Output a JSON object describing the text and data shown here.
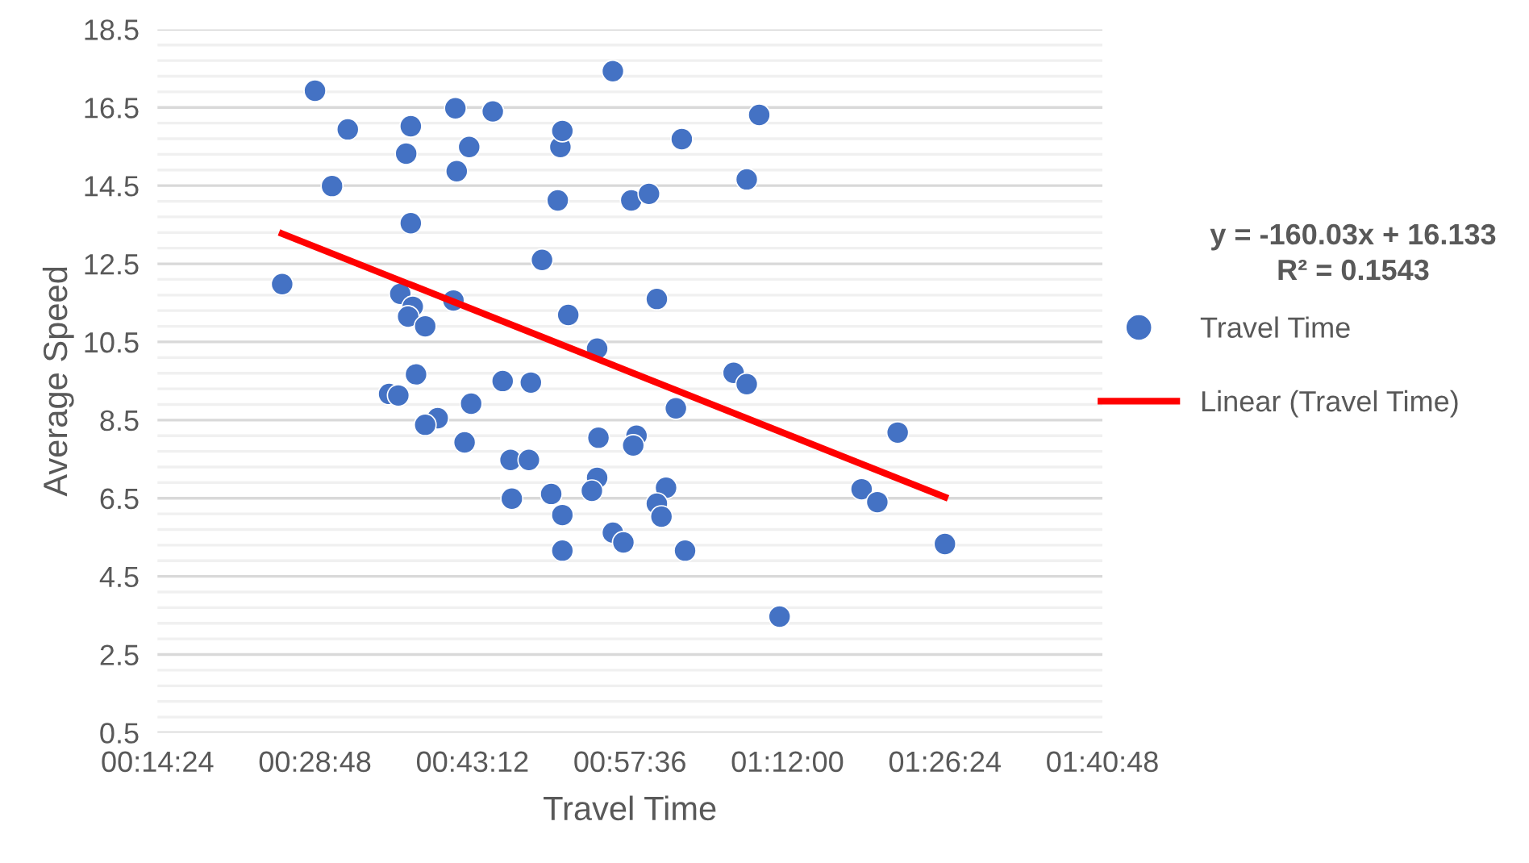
{
  "chart_data": {
    "type": "scatter",
    "xlabel": "Travel Time",
    "ylabel": "Average Speed",
    "xlim": [
      0.24,
      1.68
    ],
    "xticks": [
      {
        "value": 0.24,
        "label": "00:14:24"
      },
      {
        "value": 0.48,
        "label": "00:28:48"
      },
      {
        "value": 0.72,
        "label": "00:43:12"
      },
      {
        "value": 0.96,
        "label": "00:57:36"
      },
      {
        "value": 1.2,
        "label": "01:12:00"
      },
      {
        "value": 1.44,
        "label": "01:26:24"
      },
      {
        "value": 1.68,
        "label": "01:40:48"
      }
    ],
    "ylim": [
      0.5,
      18.5
    ],
    "yticks": [
      0.5,
      2.5,
      4.5,
      6.5,
      8.5,
      10.5,
      12.5,
      14.5,
      16.5,
      18.5
    ],
    "grid": "y",
    "legend": "right",
    "annotations": [
      "y = -160.03x + 16.133\nR² = 0.1543"
    ],
    "series": [
      {
        "name": "Travel Time",
        "color": "#4472c4",
        "marker": "circle",
        "x": [
          0.43,
          0.48,
          0.506,
          0.53,
          0.626,
          0.626,
          0.619,
          0.694,
          0.696,
          0.715,
          0.751,
          0.854,
          0.857,
          0.934,
          0.85,
          0.962,
          0.989,
          1.039,
          1.138,
          1.157,
          0.826,
          0.61,
          0.629,
          0.622,
          0.648,
          0.691,
          0.866,
          1.001,
          0.91,
          0.634,
          0.593,
          0.607,
          0.667,
          0.648,
          0.718,
          0.708,
          0.766,
          0.809,
          1.118,
          1.138,
          1.368,
          1.03,
          0.912,
          0.97,
          0.965,
          0.778,
          0.806,
          0.78,
          0.84,
          0.91,
          0.902,
          0.857,
          0.857,
          0.934,
          0.95,
          1.015,
          1.001,
          1.008,
          1.044,
          1.313,
          1.337,
          1.44,
          1.188
        ],
        "values": [
          11.98,
          16.93,
          14.49,
          15.94,
          13.54,
          16.02,
          15.32,
          16.48,
          14.87,
          15.49,
          16.4,
          15.49,
          15.9,
          17.43,
          14.12,
          14.12,
          14.29,
          15.69,
          14.66,
          16.31,
          12.6,
          11.73,
          11.4,
          11.15,
          10.9,
          11.56,
          11.19,
          11.6,
          10.33,
          9.67,
          9.17,
          9.13,
          8.55,
          8.38,
          8.92,
          7.93,
          9.5,
          9.46,
          9.71,
          9.42,
          8.18,
          8.8,
          8.05,
          8.1,
          7.85,
          7.48,
          7.48,
          6.49,
          6.61,
          7.02,
          6.69,
          6.07,
          5.16,
          5.62,
          5.37,
          6.77,
          6.36,
          6.03,
          5.16,
          6.73,
          6.4,
          5.33,
          3.47
        ]
      },
      {
        "name": "Linear (Travel Time)",
        "type": "line",
        "color": "#ff0000",
        "line_style": "solid",
        "x": [
          0.43,
          1.44
        ],
        "values": [
          13.27,
          6.53
        ]
      }
    ]
  }
}
